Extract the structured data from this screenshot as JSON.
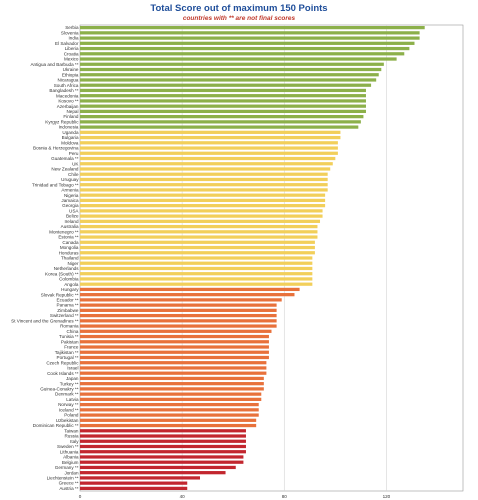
{
  "chart_data": {
    "type": "bar",
    "orientation": "horizontal",
    "title": "Total Score out of maximum 150 Points",
    "subtitle": "countries with ** are not final scores",
    "xlabel": "",
    "ylabel": "",
    "xlim": [
      0,
      150
    ],
    "xticks": [
      0,
      40,
      80,
      120
    ],
    "grid": true,
    "legend": "none",
    "group_colors": {
      "green": "#8cb04a",
      "yellow": "#f2cf5a",
      "orange": "#e8713b",
      "red": "#c2262e"
    },
    "categories": [
      "Serbia",
      "Slovenia",
      "India",
      "El Salvador",
      "Liberia",
      "Croatia",
      "Mexico",
      "Antigua and Barbuda **",
      "Ukraine",
      "Ethiopia",
      "Nicaragua",
      "South Africa",
      "Bangladesh **",
      "Macedonia",
      "Kosovo **",
      "Azerbaijan",
      "Nepal",
      "Finland",
      "Kyrgyz Republic",
      "Indonesia",
      "Uganda",
      "Bulgaria",
      "Moldova",
      "Bosnia & Herzegovina",
      "Peru",
      "Guatemala **",
      "UK",
      "New Zealand",
      "Chile",
      "Uruguay",
      "Trinidad and Tobago **",
      "Armenia",
      "Nigeria",
      "Jamaica",
      "Georgia",
      "USA",
      "Belize",
      "Ireland",
      "Australia",
      "Montenegro **",
      "Estonia **",
      "Canada",
      "Mongolia",
      "Honduras",
      "Thailand",
      "Niger",
      "Netherlands",
      "Korea (South) **",
      "Colombia",
      "Angola",
      "Hungary",
      "Slovak Republic **",
      "Ecuador **",
      "Panama **",
      "Zimbabwe",
      "Switzerland **",
      "St Vincent and the Grenadines **",
      "Romania",
      "China",
      "Tunisia **",
      "Pakistan",
      "France",
      "Tajikistan **",
      "Portugal **",
      "Czech Republic",
      "Israel",
      "Cook Islands **",
      "Japan",
      "Turkey **",
      "Guinea-Conakry **",
      "Denmark **",
      "Latvia",
      "Norway **",
      "Iceland **",
      "Poland",
      "Uzbekistan",
      "Dominican Republic **",
      "Taiwan",
      "Russia",
      "Italy",
      "Sweden **",
      "Lithuania",
      "Albania",
      "Belgium",
      "Germany **",
      "Jordan",
      "Liechtenstein **",
      "Greece **",
      "Austria **"
    ],
    "values": [
      135,
      133,
      133,
      131,
      129,
      127,
      124,
      119,
      118,
      117,
      116,
      114,
      112,
      112,
      112,
      112,
      112,
      111,
      110,
      109,
      102,
      102,
      101,
      101,
      101,
      100,
      99,
      98,
      97,
      97,
      97,
      97,
      96,
      96,
      96,
      95,
      95,
      94,
      93,
      93,
      93,
      92,
      92,
      92,
      91,
      91,
      91,
      91,
      91,
      91,
      86,
      84,
      79,
      77,
      77,
      77,
      77,
      77,
      75,
      74,
      74,
      74,
      74,
      74,
      73,
      73,
      73,
      72,
      72,
      72,
      71,
      71,
      70,
      70,
      70,
      69,
      69,
      65,
      65,
      65,
      65,
      65,
      64,
      64,
      61,
      57,
      47,
      42,
      42
    ],
    "group": [
      "green",
      "green",
      "green",
      "green",
      "green",
      "green",
      "green",
      "green",
      "green",
      "green",
      "green",
      "green",
      "green",
      "green",
      "green",
      "green",
      "green",
      "green",
      "green",
      "green",
      "yellow",
      "yellow",
      "yellow",
      "yellow",
      "yellow",
      "yellow",
      "yellow",
      "yellow",
      "yellow",
      "yellow",
      "yellow",
      "yellow",
      "yellow",
      "yellow",
      "yellow",
      "yellow",
      "yellow",
      "yellow",
      "yellow",
      "yellow",
      "yellow",
      "yellow",
      "yellow",
      "yellow",
      "yellow",
      "yellow",
      "yellow",
      "yellow",
      "yellow",
      "yellow",
      "orange",
      "orange",
      "orange",
      "orange",
      "orange",
      "orange",
      "orange",
      "orange",
      "orange",
      "orange",
      "orange",
      "orange",
      "orange",
      "orange",
      "orange",
      "orange",
      "orange",
      "orange",
      "orange",
      "orange",
      "orange",
      "orange",
      "orange",
      "orange",
      "orange",
      "orange",
      "orange",
      "red",
      "red",
      "red",
      "red",
      "red",
      "red",
      "red",
      "red",
      "red",
      "red",
      "red",
      "red"
    ]
  }
}
